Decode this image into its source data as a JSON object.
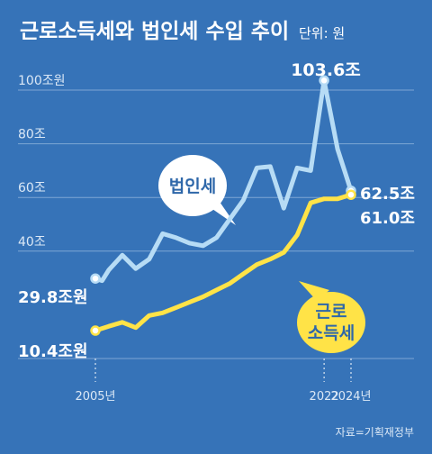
{
  "colors": {
    "background": "#3673b8",
    "corporate": "#b7dcf5",
    "earned": "#ffe347",
    "grid": "#7ea6d4",
    "text": "#ffffff",
    "axis_text": "#dbe8f6"
  },
  "chart_data": {
    "type": "line",
    "title": "근로소득세와 법인세 수입 추이",
    "unit_label": "단위: 원",
    "y_ticks": [
      "100조원",
      "80조",
      "60조",
      "40조"
    ],
    "y_tick_values": [
      100,
      80,
      60,
      40
    ],
    "ylim": [
      0,
      120
    ],
    "xlim": [
      2005,
      2024
    ],
    "x_ticks": [
      "2005년",
      "2022",
      "2024년"
    ],
    "x_tick_values": [
      2005,
      2022,
      2024
    ],
    "grid": true,
    "source": "자료=기획재정부",
    "series": [
      {
        "name": "법인세",
        "x": [
          2005,
          2005.5,
          2006,
          2007,
          2008,
          2009,
          2010,
          2011,
          2012,
          2013,
          2014,
          2015,
          2016,
          2017,
          2018,
          2019,
          2020,
          2021,
          2022,
          2023,
          2024
        ],
        "values": [
          29.8,
          29.0,
          33.0,
          38.5,
          33.5,
          37.0,
          46.5,
          45.0,
          43.0,
          42.0,
          45.0,
          52.0,
          59.0,
          71.0,
          71.5,
          56.0,
          71.0,
          70.0,
          103.6,
          78.0,
          62.5
        ],
        "start_label": "29.8조원",
        "end_label": "62.5조",
        "peak_label": "103.6조",
        "bubble_label": "법인세"
      },
      {
        "name": "근로소득세",
        "x": [
          2005,
          2006,
          2007,
          2008,
          2009,
          2010,
          2011,
          2012,
          2013,
          2014,
          2015,
          2016,
          2017,
          2018,
          2019,
          2020,
          2021,
          2022,
          2023,
          2024
        ],
        "values": [
          10.4,
          12.0,
          13.5,
          11.5,
          16.0,
          17.0,
          19.0,
          21.0,
          23.0,
          25.5,
          28.0,
          31.5,
          35.0,
          37.0,
          39.5,
          46.0,
          58.0,
          59.5,
          59.5,
          61.0
        ],
        "start_label": "10.4조원",
        "end_label": "61.0조",
        "bubble_label_line1": "근로",
        "bubble_label_line2": "소득세"
      }
    ]
  }
}
